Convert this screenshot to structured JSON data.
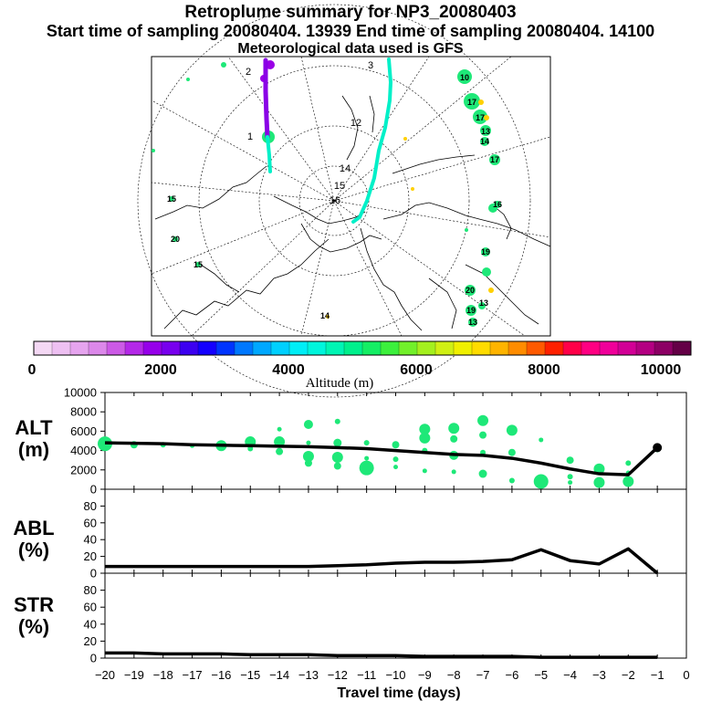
{
  "header": {
    "title": "Retroplume summary for NP3_20080403",
    "sampling": "Start time of sampling 20080404. 13939     End time of sampling 20080404. 14100",
    "met": "Meteorological data used is GFS"
  },
  "map": {
    "grid_labels": [
      "12",
      "14",
      "15",
      "16",
      "1",
      "2",
      "3"
    ],
    "site_labels": [
      "10",
      "17",
      "17",
      "13",
      "13",
      "14",
      "17",
      "19",
      "16",
      "20",
      "19",
      "15",
      "20",
      "13",
      "15",
      "14"
    ],
    "colors": {
      "track_purple": "#8a00e6",
      "track_cyan": "#00f0c8",
      "dot_green": "#1ee878"
    }
  },
  "colorbar": {
    "tick_labels": [
      "0",
      "2000",
      "4000",
      "6000",
      "8000",
      "10000"
    ],
    "label": "Altitude (m)",
    "colors": [
      "#f4d8f4",
      "#eec0f2",
      "#e6a4ef",
      "#dc88ea",
      "#cc5ae6",
      "#b428e8",
      "#9600ea",
      "#7800ee",
      "#3c00f0",
      "#1400ff",
      "#0034ff",
      "#0078ff",
      "#00a8ff",
      "#00d0ff",
      "#00eef6",
      "#00f5dc",
      "#00f5b4",
      "#00f08c",
      "#14ee64",
      "#3cf03c",
      "#72f02a",
      "#a4f01e",
      "#d0f014",
      "#f0f000",
      "#ffdc00",
      "#ffb400",
      "#ff8c00",
      "#ff5a00",
      "#ff2000",
      "#ff0048",
      "#ff0082",
      "#f0009a",
      "#d20096",
      "#b40082",
      "#8c0064",
      "#640046"
    ]
  },
  "chart_data": [
    {
      "type": "line",
      "name": "ALT",
      "ylabel": "ALT (m)",
      "ylim": [
        0,
        10000
      ],
      "yticks": [
        0,
        2000,
        4000,
        6000,
        8000,
        10000
      ],
      "x": [
        -20,
        -19,
        -18,
        -17,
        -16,
        -15,
        -14,
        -13,
        -12,
        -11,
        -10,
        -9,
        -8,
        -7,
        -6,
        -5,
        -4,
        -3,
        -2,
        -1
      ],
      "values": [
        4800,
        4750,
        4700,
        4600,
        4550,
        4500,
        4450,
        4400,
        4300,
        4200,
        4000,
        3800,
        3600,
        3500,
        3200,
        2700,
        2100,
        1600,
        1500,
        4300
      ],
      "scatter": {
        "color": "#1ee878",
        "points": [
          [
            -20,
            4700
          ],
          [
            -19,
            4600
          ],
          [
            -18,
            4600
          ],
          [
            -17,
            4500
          ],
          [
            -16,
            4500
          ],
          [
            -15,
            4900
          ],
          [
            -15,
            4200
          ],
          [
            -14,
            6200
          ],
          [
            -14,
            4900
          ],
          [
            -14,
            3900
          ],
          [
            -13,
            6700
          ],
          [
            -13,
            4800
          ],
          [
            -13,
            3400
          ],
          [
            -13,
            2700
          ],
          [
            -12,
            7000
          ],
          [
            -12,
            4800
          ],
          [
            -12,
            3300
          ],
          [
            -12,
            2400
          ],
          [
            -11,
            4800
          ],
          [
            -11,
            3200
          ],
          [
            -11,
            2200
          ],
          [
            -10,
            4600
          ],
          [
            -10,
            3100
          ],
          [
            -10,
            2300
          ],
          [
            -9,
            6200
          ],
          [
            -9,
            5300
          ],
          [
            -9,
            4000
          ],
          [
            -9,
            1900
          ],
          [
            -8,
            6300
          ],
          [
            -8,
            5200
          ],
          [
            -8,
            3500
          ],
          [
            -8,
            1800
          ],
          [
            -7,
            7100
          ],
          [
            -7,
            5600
          ],
          [
            -7,
            3800
          ],
          [
            -7,
            1600
          ],
          [
            -6,
            6100
          ],
          [
            -6,
            3800
          ],
          [
            -6,
            900
          ],
          [
            -5,
            5100
          ],
          [
            -5,
            800
          ],
          [
            -4,
            3000
          ],
          [
            -4,
            1300
          ],
          [
            -4,
            700
          ],
          [
            -3,
            2100
          ],
          [
            -3,
            700
          ],
          [
            -2,
            2700
          ],
          [
            -2,
            1700
          ],
          [
            -2,
            800
          ],
          [
            -1,
            4200
          ]
        ]
      }
    },
    {
      "type": "line",
      "name": "ABL",
      "ylabel": "ABL (%)",
      "ylim": [
        0,
        100
      ],
      "yticks": [
        0,
        20,
        40,
        60,
        80
      ],
      "x": [
        -20,
        -19,
        -18,
        -17,
        -16,
        -15,
        -14,
        -13,
        -12,
        -11,
        -10,
        -9,
        -8,
        -7,
        -6,
        -5,
        -4,
        -3,
        -2,
        -1
      ],
      "values": [
        8,
        8,
        8,
        8,
        8,
        8,
        8,
        8,
        9,
        10,
        12,
        13,
        13,
        14,
        16,
        28,
        15,
        11,
        29,
        0
      ]
    },
    {
      "type": "line",
      "name": "STR",
      "ylabel": "STR (%)",
      "ylim": [
        0,
        100
      ],
      "yticks": [
        0,
        20,
        40,
        60,
        80
      ],
      "x": [
        -20,
        -19,
        -18,
        -17,
        -16,
        -15,
        -14,
        -13,
        -12,
        -11,
        -10,
        -9,
        -8,
        -7,
        -6,
        -5,
        -4,
        -3,
        -2,
        -1
      ],
      "values": [
        6,
        6,
        5,
        5,
        5,
        4,
        4,
        4,
        3,
        3,
        3,
        2,
        2,
        2,
        2,
        1,
        1,
        1,
        1,
        1
      ]
    }
  ],
  "panels": {
    "alt": {
      "name": "ALT",
      "unit": "(m)"
    },
    "abl": {
      "name": "ABL",
      "unit": "(%)"
    },
    "str": {
      "name": "STR",
      "unit": "(%)"
    }
  },
  "x_axis": {
    "tick_labels": [
      "−20",
      "−19",
      "−18",
      "−17",
      "−16",
      "−15",
      "−14",
      "−13",
      "−12",
      "−11",
      "−10",
      "−9",
      "−8",
      "−7",
      "−6",
      "−5",
      "−4",
      "−3",
      "−2",
      "−1",
      "0"
    ],
    "label": "Travel time (days)"
  }
}
